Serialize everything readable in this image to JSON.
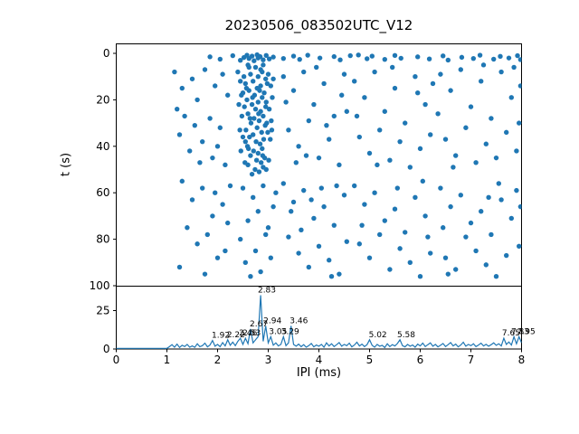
{
  "figure": {
    "title": "20230506_083502UTC_V12",
    "top_ylabel": "t (s)",
    "bottom_xlabel": "IPI (ms)"
  },
  "colors": {
    "series": "#1f77b4",
    "axis": "#000000",
    "background": "#ffffff"
  },
  "chart_data": [
    {
      "type": "scatter",
      "title": "20230506_083502UTC_V12",
      "xlabel": "",
      "ylabel": "t (s)",
      "xlim": [
        0,
        8
      ],
      "ylim": [
        100,
        0
      ],
      "y_inverted": true,
      "yticks": [
        0,
        20,
        40,
        60,
        80,
        100
      ],
      "grid": false,
      "marker_color": "#1f77b4",
      "points": [
        [
          1.85,
          1.5
        ],
        [
          2.05,
          2.5
        ],
        [
          2.3,
          1.0
        ],
        [
          2.45,
          3.0
        ],
        [
          2.52,
          1.8
        ],
        [
          2.58,
          0.8
        ],
        [
          2.62,
          2.2
        ],
        [
          2.68,
          1.2
        ],
        [
          2.72,
          3.2
        ],
        [
          2.78,
          0.6
        ],
        [
          2.8,
          2.0
        ],
        [
          2.84,
          1.4
        ],
        [
          2.9,
          2.8
        ],
        [
          2.96,
          0.9
        ],
        [
          3.02,
          2.4
        ],
        [
          3.1,
          1.6
        ],
        [
          3.3,
          2.2
        ],
        [
          3.5,
          1.2
        ],
        [
          3.62,
          2.6
        ],
        [
          3.78,
          0.8
        ],
        [
          4.02,
          2.0
        ],
        [
          4.3,
          1.4
        ],
        [
          4.42,
          2.8
        ],
        [
          4.62,
          1.0
        ],
        [
          4.95,
          2.3
        ],
        [
          5.05,
          1.2
        ],
        [
          5.3,
          2.6
        ],
        [
          5.5,
          0.9
        ],
        [
          5.62,
          2.1
        ],
        [
          5.95,
          1.5
        ],
        [
          6.18,
          2.4
        ],
        [
          6.45,
          1.1
        ],
        [
          6.55,
          2.9
        ],
        [
          6.82,
          1.7
        ],
        [
          7.05,
          2.2
        ],
        [
          7.18,
          0.8
        ],
        [
          7.45,
          2.5
        ],
        [
          7.58,
          1.3
        ],
        [
          7.75,
          2.0
        ],
        [
          7.92,
          1.0
        ],
        [
          7.98,
          2.7
        ],
        [
          4.78,
          0.7
        ],
        [
          2.6,
          5
        ],
        [
          2.75,
          6
        ],
        [
          2.85,
          7
        ],
        [
          2.9,
          5
        ],
        [
          2.65,
          9
        ],
        [
          2.8,
          10
        ],
        [
          2.95,
          11
        ],
        [
          2.7,
          12
        ],
        [
          2.55,
          13
        ],
        [
          2.85,
          14
        ],
        [
          2.78,
          15
        ],
        [
          2.62,
          16
        ],
        [
          2.92,
          17
        ],
        [
          2.73,
          18
        ],
        [
          2.88,
          19
        ],
        [
          2.58,
          20
        ],
        [
          2.8,
          21
        ],
        [
          2.68,
          22
        ],
        [
          2.95,
          23
        ],
        [
          2.75,
          24
        ],
        [
          2.85,
          25
        ],
        [
          2.6,
          26
        ],
        [
          2.9,
          27
        ],
        [
          2.72,
          28
        ],
        [
          2.82,
          29
        ],
        [
          2.66,
          30
        ],
        [
          2.94,
          31
        ],
        [
          2.78,
          32
        ],
        [
          2.56,
          33
        ],
        [
          2.87,
          34
        ],
        [
          2.7,
          35
        ],
        [
          2.63,
          36
        ],
        [
          2.91,
          37
        ],
        [
          2.76,
          38
        ],
        [
          2.84,
          39
        ],
        [
          2.59,
          40
        ],
        [
          2.88,
          41
        ],
        [
          2.71,
          42
        ],
        [
          2.8,
          43
        ],
        [
          2.65,
          44
        ],
        [
          2.93,
          45
        ],
        [
          2.77,
          46
        ],
        [
          2.86,
          47
        ],
        [
          2.6,
          48
        ],
        [
          2.9,
          49
        ],
        [
          2.74,
          50
        ],
        [
          2.82,
          51
        ],
        [
          2.68,
          52
        ],
        [
          2.4,
          8
        ],
        [
          2.45,
          12
        ],
        [
          2.5,
          17
        ],
        [
          2.42,
          22
        ],
        [
          2.48,
          27
        ],
        [
          3.0,
          9
        ],
        [
          3.05,
          14
        ],
        [
          3.08,
          19
        ],
        [
          3.02,
          24
        ],
        [
          3.06,
          29
        ],
        [
          2.44,
          33
        ],
        [
          3.04,
          37
        ],
        [
          2.46,
          42
        ],
        [
          3.01,
          46
        ],
        [
          2.5,
          36
        ],
        [
          3.1,
          11
        ],
        [
          2.62,
          6
        ],
        [
          2.88,
          8
        ],
        [
          2.52,
          10
        ],
        [
          2.98,
          13
        ],
        [
          2.57,
          15
        ],
        [
          2.83,
          16
        ],
        [
          2.69,
          19
        ],
        [
          2.96,
          21
        ],
        [
          2.53,
          23
        ],
        [
          2.81,
          26
        ],
        [
          2.64,
          28
        ],
        [
          2.97,
          30
        ],
        [
          2.55,
          38
        ],
        [
          2.99,
          34
        ],
        [
          2.61,
          41
        ],
        [
          2.89,
          44
        ],
        [
          2.54,
          47
        ],
        [
          2.96,
          50
        ],
        [
          2.47,
          18
        ],
        [
          3.07,
          33
        ],
        [
          1.15,
          8
        ],
        [
          1.3,
          15
        ],
        [
          1.2,
          24
        ],
        [
          1.5,
          11
        ],
        [
          1.6,
          20
        ],
        [
          1.75,
          7
        ],
        [
          1.85,
          28
        ],
        [
          1.95,
          14
        ],
        [
          2.1,
          9
        ],
        [
          2.2,
          18
        ],
        [
          1.25,
          35
        ],
        [
          1.45,
          42
        ],
        [
          1.7,
          38
        ],
        [
          1.9,
          45
        ],
        [
          2.05,
          32
        ],
        [
          2.15,
          48
        ],
        [
          1.35,
          27
        ],
        [
          1.55,
          31
        ],
        [
          2.0,
          40
        ],
        [
          1.65,
          47
        ],
        [
          1.3,
          55
        ],
        [
          1.5,
          63
        ],
        [
          1.7,
          58
        ],
        [
          1.9,
          70
        ],
        [
          2.1,
          65
        ],
        [
          1.4,
          75
        ],
        [
          1.6,
          82
        ],
        [
          1.8,
          78
        ],
        [
          2.0,
          88
        ],
        [
          2.2,
          73
        ],
        [
          1.25,
          92
        ],
        [
          1.75,
          95
        ],
        [
          2.15,
          85
        ],
        [
          1.95,
          60
        ],
        [
          2.25,
          57
        ],
        [
          2.5,
          58
        ],
        [
          2.7,
          62
        ],
        [
          2.9,
          57
        ],
        [
          3.1,
          66
        ],
        [
          2.6,
          72
        ],
        [
          2.8,
          68
        ],
        [
          3.0,
          75
        ],
        [
          2.45,
          80
        ],
        [
          2.75,
          85
        ],
        [
          2.95,
          78
        ],
        [
          2.55,
          90
        ],
        [
          2.85,
          94
        ],
        [
          3.05,
          88
        ],
        [
          2.65,
          96
        ],
        [
          3.15,
          60
        ],
        [
          3.3,
          10
        ],
        [
          3.5,
          16
        ],
        [
          3.7,
          8
        ],
        [
          3.9,
          22
        ],
        [
          4.1,
          13
        ],
        [
          4.3,
          27
        ],
        [
          4.5,
          9
        ],
        [
          3.4,
          33
        ],
        [
          3.6,
          40
        ],
        [
          3.8,
          29
        ],
        [
          4.0,
          45
        ],
        [
          4.2,
          37
        ],
        [
          4.4,
          48
        ],
        [
          3.35,
          21
        ],
        [
          3.55,
          47
        ],
        [
          3.95,
          6
        ],
        [
          4.45,
          18
        ],
        [
          3.75,
          44
        ],
        [
          4.15,
          31
        ],
        [
          4.55,
          25
        ],
        [
          3.3,
          56
        ],
        [
          3.5,
          64
        ],
        [
          3.7,
          59
        ],
        [
          3.9,
          71
        ],
        [
          4.1,
          66
        ],
        [
          4.3,
          74
        ],
        [
          4.5,
          61
        ],
        [
          3.4,
          79
        ],
        [
          3.6,
          86
        ],
        [
          3.8,
          92
        ],
        [
          4.0,
          83
        ],
        [
          4.2,
          89
        ],
        [
          4.4,
          95
        ],
        [
          3.45,
          68
        ],
        [
          4.35,
          57
        ],
        [
          3.85,
          63
        ],
        [
          4.25,
          96
        ],
        [
          3.65,
          76
        ],
        [
          4.05,
          58
        ],
        [
          4.55,
          81
        ],
        [
          4.7,
          12
        ],
        [
          4.9,
          19
        ],
        [
          5.1,
          8
        ],
        [
          5.3,
          25
        ],
        [
          5.5,
          15
        ],
        [
          5.7,
          30
        ],
        [
          5.9,
          10
        ],
        [
          6.1,
          22
        ],
        [
          4.8,
          36
        ],
        [
          5.0,
          43
        ],
        [
          5.2,
          33
        ],
        [
          5.4,
          46
        ],
        [
          5.6,
          38
        ],
        [
          5.8,
          49
        ],
        [
          6.0,
          41
        ],
        [
          6.2,
          35
        ],
        [
          4.75,
          27
        ],
        [
          5.45,
          6
        ],
        [
          5.95,
          17
        ],
        [
          6.25,
          13
        ],
        [
          5.15,
          48
        ],
        [
          4.7,
          57
        ],
        [
          4.9,
          65
        ],
        [
          5.1,
          60
        ],
        [
          5.3,
          72
        ],
        [
          5.5,
          67
        ],
        [
          5.7,
          77
        ],
        [
          5.9,
          62
        ],
        [
          6.1,
          70
        ],
        [
          4.8,
          82
        ],
        [
          5.0,
          88
        ],
        [
          5.2,
          78
        ],
        [
          5.4,
          93
        ],
        [
          5.6,
          84
        ],
        [
          5.8,
          90
        ],
        [
          6.0,
          96
        ],
        [
          6.2,
          86
        ],
        [
          4.85,
          74
        ],
        [
          5.55,
          58
        ],
        [
          6.05,
          55
        ],
        [
          6.15,
          79
        ],
        [
          6.4,
          9
        ],
        [
          6.6,
          16
        ],
        [
          6.8,
          7
        ],
        [
          7.0,
          23
        ],
        [
          7.2,
          12
        ],
        [
          7.4,
          28
        ],
        [
          7.6,
          8
        ],
        [
          7.8,
          19
        ],
        [
          7.95,
          30
        ],
        [
          6.5,
          37
        ],
        [
          6.7,
          44
        ],
        [
          6.9,
          32
        ],
        [
          7.1,
          47
        ],
        [
          7.3,
          39
        ],
        [
          7.5,
          45
        ],
        [
          7.7,
          34
        ],
        [
          7.9,
          42
        ],
        [
          6.35,
          26
        ],
        [
          7.85,
          6
        ],
        [
          7.98,
          14
        ],
        [
          6.65,
          49
        ],
        [
          7.25,
          5
        ],
        [
          6.4,
          58
        ],
        [
          6.6,
          66
        ],
        [
          6.8,
          61
        ],
        [
          7.0,
          73
        ],
        [
          7.2,
          68
        ],
        [
          7.4,
          78
        ],
        [
          7.6,
          63
        ],
        [
          7.8,
          71
        ],
        [
          7.95,
          83
        ],
        [
          6.5,
          88
        ],
        [
          6.7,
          93
        ],
        [
          6.9,
          79
        ],
        [
          7.1,
          85
        ],
        [
          7.3,
          91
        ],
        [
          7.5,
          96
        ],
        [
          7.7,
          87
        ],
        [
          7.9,
          59
        ],
        [
          6.45,
          75
        ],
        [
          7.55,
          56
        ],
        [
          7.98,
          66
        ],
        [
          6.55,
          95
        ],
        [
          7.35,
          62
        ]
      ]
    },
    {
      "type": "line",
      "xlabel": "IPI (ms)",
      "ylabel": "",
      "xlim": [
        0,
        8
      ],
      "ylim": [
        0,
        41
      ],
      "xticks": [
        0,
        1,
        2,
        3,
        4,
        5,
        6,
        7,
        8
      ],
      "yticks": [
        0,
        25
      ],
      "grid": false,
      "line_color": "#1f77b4",
      "x_start": 0,
      "x_step": 0.05,
      "values": [
        0.4,
        0.4,
        0.4,
        0.4,
        0.4,
        0.4,
        0.4,
        0.4,
        0.4,
        0.4,
        0.4,
        0.4,
        0.4,
        0.4,
        0.4,
        0.4,
        0.4,
        0.4,
        0.4,
        0.4,
        0.4,
        1.5,
        2.8,
        1.2,
        3.2,
        1.0,
        2.4,
        1.6,
        3.0,
        1.2,
        2.0,
        1.1,
        3.4,
        1.5,
        2.2,
        3.8,
        1.4,
        2.6,
        5.5,
        1.8,
        3.0,
        1.5,
        4.2,
        2.0,
        6.0,
        2.4,
        4.5,
        2.2,
        5.0,
        7.0,
        3.0,
        7.0,
        3.5,
        13.0,
        4.0,
        6.0,
        8.0,
        35.0,
        5.0,
        15.0,
        4.0,
        8.0,
        2.5,
        4.0,
        2.0,
        3.0,
        8.0,
        2.2,
        4.0,
        15.0,
        3.0,
        1.8,
        3.2,
        1.5,
        2.8,
        1.2,
        2.2,
        3.6,
        1.4,
        2.6,
        1.8,
        3.0,
        1.2,
        4.0,
        2.0,
        3.4,
        1.6,
        2.8,
        4.2,
        1.8,
        3.0,
        2.2,
        3.8,
        1.4,
        2.6,
        4.4,
        2.0,
        3.2,
        1.6,
        2.8,
        6.0,
        2.4,
        1.2,
        3.0,
        1.8,
        2.4,
        1.0,
        3.4,
        1.6,
        2.8,
        2.0,
        3.6,
        6.0,
        2.2,
        1.4,
        3.0,
        1.8,
        2.6,
        1.2,
        3.2,
        2.0,
        3.8,
        1.6,
        2.8,
        4.0,
        1.8,
        3.0,
        1.4,
        2.4,
        3.6,
        1.6,
        2.8,
        4.2,
        2.0,
        3.2,
        1.4,
        2.6,
        4.4,
        1.8,
        3.0,
        2.2,
        3.4,
        1.6,
        2.6,
        3.8,
        2.0,
        3.0,
        1.8,
        2.8,
        4.0,
        2.4,
        3.4,
        2.0,
        7.0,
        3.0,
        4.6,
        2.6,
        8.0,
        3.4,
        8.0,
        4.0
      ],
      "annotations": [
        {
          "x": 1.92,
          "y": 5.5,
          "label": "1.92"
        },
        {
          "x": 2.22,
          "y": 6.0,
          "label": "2.22"
        },
        {
          "x": 2.46,
          "y": 7.0,
          "label": "2.46"
        },
        {
          "x": 2.53,
          "y": 7.0,
          "label": "2.53"
        },
        {
          "x": 2.67,
          "y": 13.0,
          "label": "2.67"
        },
        {
          "x": 2.83,
          "y": 35.0,
          "label": "2.83"
        },
        {
          "x": 2.94,
          "y": 15.0,
          "label": "2.94"
        },
        {
          "x": 3.05,
          "y": 8.0,
          "label": "3.05"
        },
        {
          "x": 3.29,
          "y": 8.0,
          "label": "3.29"
        },
        {
          "x": 3.46,
          "y": 15.0,
          "label": "3.46"
        },
        {
          "x": 5.02,
          "y": 6.0,
          "label": "5.02"
        },
        {
          "x": 5.58,
          "y": 6.0,
          "label": "5.58"
        },
        {
          "x": 7.65,
          "y": 7.0,
          "label": "7.65"
        },
        {
          "x": 7.83,
          "y": 8.0,
          "label": "7.83"
        },
        {
          "x": 7.95,
          "y": 8.0,
          "label": "7.95"
        }
      ]
    }
  ]
}
